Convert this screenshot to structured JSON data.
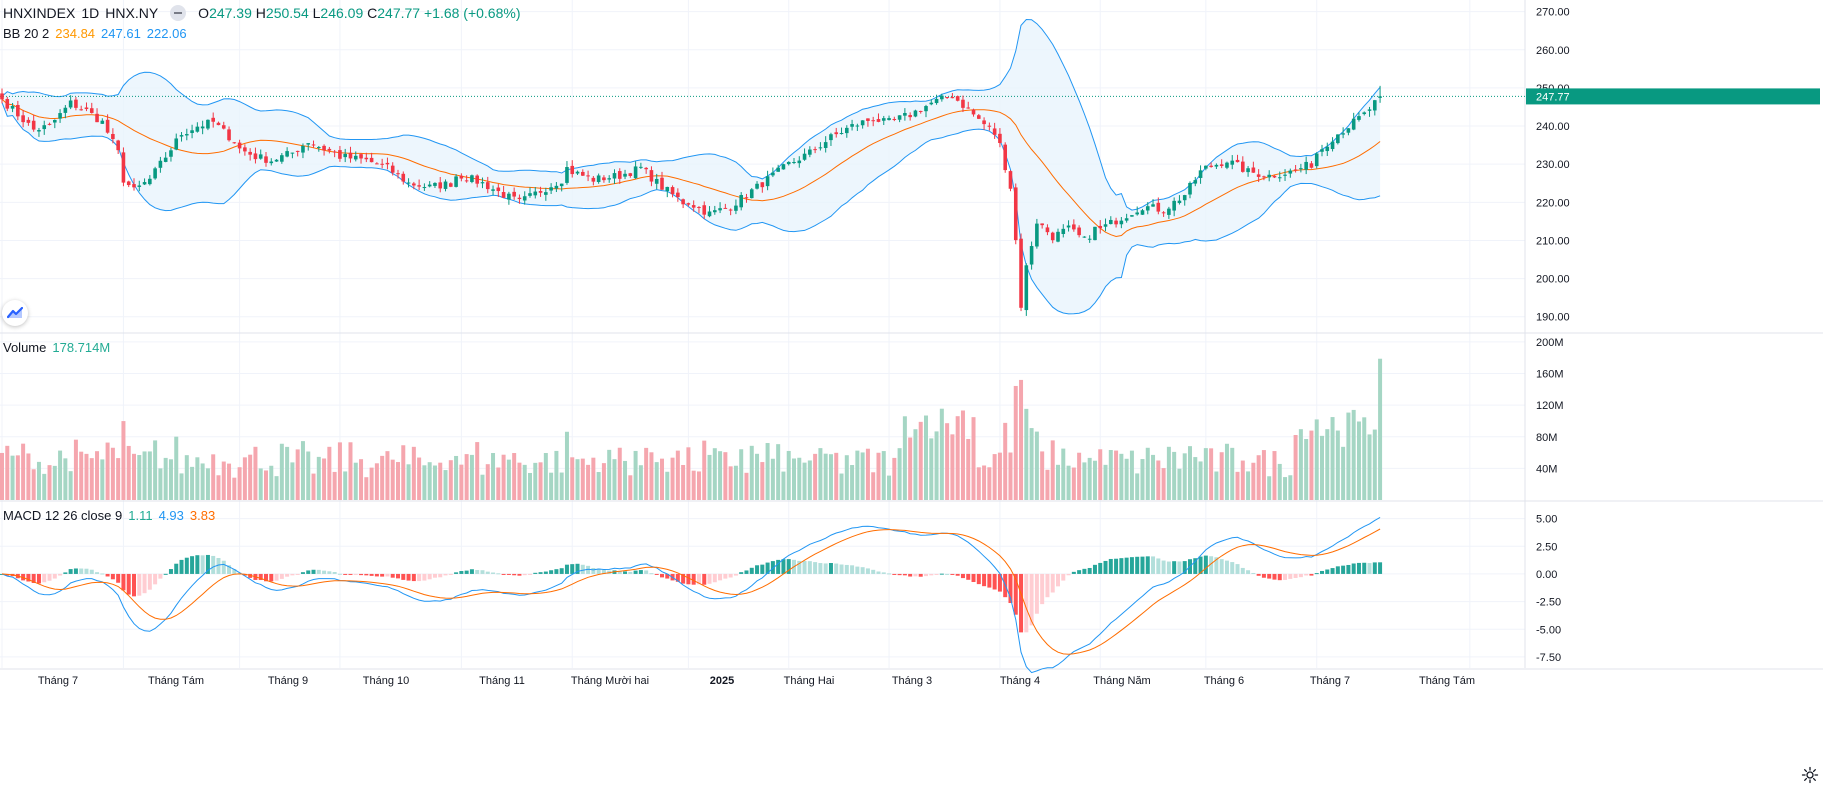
{
  "header": {
    "symbol": "HNXINDEX",
    "interval": "1D",
    "exchange": "HNX.NY",
    "open_label": "O",
    "open": "247.39",
    "high_label": "H",
    "high": "250.54",
    "low_label": "L",
    "low": "246.09",
    "close_label": "C",
    "close": "247.77",
    "change": "+1.68 (+0.68%)"
  },
  "bb_legend": {
    "name": "BB 20 2",
    "basis": "234.84",
    "upper": "247.61",
    "lower": "222.06"
  },
  "volume_legend": {
    "name": "Volume",
    "value": "178.714M"
  },
  "macd_legend": {
    "name": "MACD 12 26 close 9",
    "hist": "1.11",
    "macd": "4.93",
    "signal": "3.83"
  },
  "last_price_tag": "247.77",
  "price_axis_labels": [
    "270.00",
    "260.00",
    "250.00",
    "240.00",
    "230.00",
    "220.00",
    "210.00",
    "200.00",
    "190.00"
  ],
  "volume_axis_labels": [
    "200M",
    "160M",
    "120M",
    "80M",
    "40M"
  ],
  "macd_axis_labels": [
    "5.00",
    "2.50",
    "0.00",
    "-2.50",
    "-5.00",
    "-7.50"
  ],
  "time_axis_labels": [
    "Tháng 7",
    "Tháng Tám",
    "Tháng 9",
    "Tháng 10",
    "Tháng 11",
    "Tháng Mười hai",
    "2025",
    "Tháng Hai",
    "Tháng 3",
    "Tháng 4",
    "Tháng Năm",
    "Tháng 6",
    "Tháng 7",
    "Tháng Tám"
  ],
  "colors": {
    "up": "#089981",
    "down": "#f23645",
    "vol_up": "#a5d6c4",
    "vol_down": "#f5a6ae",
    "bb_band": "#2196f3",
    "bb_basis": "#ff6d00",
    "bb_fill": "#e8f4fd",
    "macd_line": "#2196f3",
    "signal_line": "#ff6d00",
    "hist_up_strong": "#26a69a",
    "hist_up_weak": "#b2dfdb",
    "hist_down_strong": "#ff5252",
    "hist_down_weak": "#ffcdd2",
    "grid": "#f0f3fa"
  },
  "chart_data": {
    "type": "candlestick",
    "title": "HNXINDEX 1D HNX.NY",
    "ylim": [
      186,
      272
    ],
    "volume_ylim": [
      0,
      210
    ],
    "macd_ylim": [
      -8.5,
      6.5
    ],
    "months": [
      {
        "label": "Tháng 7",
        "bars": 23,
        "points": [
          [
            0,
            247
          ],
          [
            3,
            243
          ],
          [
            6,
            239
          ],
          [
            9,
            240
          ],
          [
            11,
            243
          ],
          [
            13,
            246
          ],
          [
            16,
            244
          ],
          [
            19,
            241
          ],
          [
            22,
            233
          ]
        ]
      },
      {
        "label": "Tháng Tám",
        "bars": 22,
        "points": [
          [
            0,
            226
          ],
          [
            2,
            223
          ],
          [
            5,
            226
          ],
          [
            8,
            232
          ],
          [
            11,
            238
          ],
          [
            14,
            240
          ],
          [
            17,
            241
          ],
          [
            21,
            236
          ]
        ]
      },
      {
        "label": "Tháng 9",
        "bars": 19,
        "points": [
          [
            0,
            234
          ],
          [
            3,
            232
          ],
          [
            6,
            231
          ],
          [
            10,
            233
          ],
          [
            13,
            236
          ],
          [
            16,
            234
          ],
          [
            18,
            233
          ]
        ]
      },
      {
        "label": "Tháng 10",
        "bars": 23,
        "points": [
          [
            0,
            232
          ],
          [
            5,
            231
          ],
          [
            9,
            229
          ],
          [
            13,
            225
          ],
          [
            17,
            224
          ],
          [
            21,
            225
          ],
          [
            22,
            227
          ]
        ]
      },
      {
        "label": "Tháng 11",
        "bars": 21,
        "points": [
          [
            0,
            227
          ],
          [
            4,
            225
          ],
          [
            8,
            222
          ],
          [
            11,
            220
          ],
          [
            15,
            223
          ],
          [
            19,
            226
          ],
          [
            20,
            229
          ]
        ]
      },
      {
        "label": "Tháng Mười hai",
        "bars": 22,
        "points": [
          [
            0,
            228
          ],
          [
            4,
            226
          ],
          [
            9,
            227
          ],
          [
            13,
            229
          ],
          [
            17,
            224
          ],
          [
            21,
            220
          ]
        ]
      },
      {
        "label": "2025",
        "bars": 19,
        "points": [
          [
            0,
            220
          ],
          [
            4,
            217
          ],
          [
            8,
            219
          ],
          [
            12,
            223
          ],
          [
            16,
            227
          ],
          [
            18,
            229
          ]
        ]
      },
      {
        "label": "Tháng Hai",
        "bars": 19,
        "points": [
          [
            0,
            230
          ],
          [
            4,
            233
          ],
          [
            8,
            237
          ],
          [
            12,
            240
          ],
          [
            16,
            242
          ],
          [
            18,
            241
          ]
        ]
      },
      {
        "label": "Tháng 3",
        "bars": 21,
        "points": [
          [
            0,
            241
          ],
          [
            4,
            243
          ],
          [
            8,
            246
          ],
          [
            12,
            248
          ],
          [
            16,
            243
          ],
          [
            20,
            238
          ]
        ]
      },
      {
        "label": "Tháng 4",
        "bars": 19,
        "points": [
          [
            0,
            235
          ],
          [
            2,
            224
          ],
          [
            3,
            210
          ],
          [
            4,
            193
          ],
          [
            5,
            203
          ],
          [
            7,
            215
          ],
          [
            10,
            211
          ],
          [
            13,
            213
          ],
          [
            16,
            210
          ],
          [
            18,
            213
          ]
        ]
      },
      {
        "label": "Tháng Năm",
        "bars": 20,
        "points": [
          [
            0,
            213
          ],
          [
            4,
            216
          ],
          [
            8,
            219
          ],
          [
            12,
            218
          ],
          [
            16,
            222
          ],
          [
            19,
            228
          ]
        ]
      },
      {
        "label": "Tháng 6",
        "bars": 21,
        "points": [
          [
            0,
            229
          ],
          [
            4,
            231
          ],
          [
            8,
            228
          ],
          [
            12,
            227
          ],
          [
            16,
            228
          ],
          [
            20,
            230
          ]
        ]
      },
      {
        "label": "Tháng 7",
        "bars": 13,
        "points": [
          [
            0,
            233
          ],
          [
            3,
            237
          ],
          [
            6,
            240
          ],
          [
            9,
            243
          ],
          [
            11,
            246
          ],
          [
            12,
            247.77
          ]
        ]
      }
    ],
    "volume_range_M": [
      25,
      200
    ],
    "last_volume_M": 178.714,
    "bb_last": {
      "basis": 234.84,
      "upper": 247.61,
      "lower": 222.06
    },
    "macd_last": {
      "histogram": 1.11,
      "macd": 4.93,
      "signal": 3.83
    },
    "future_month_label": "Tháng Tám"
  }
}
